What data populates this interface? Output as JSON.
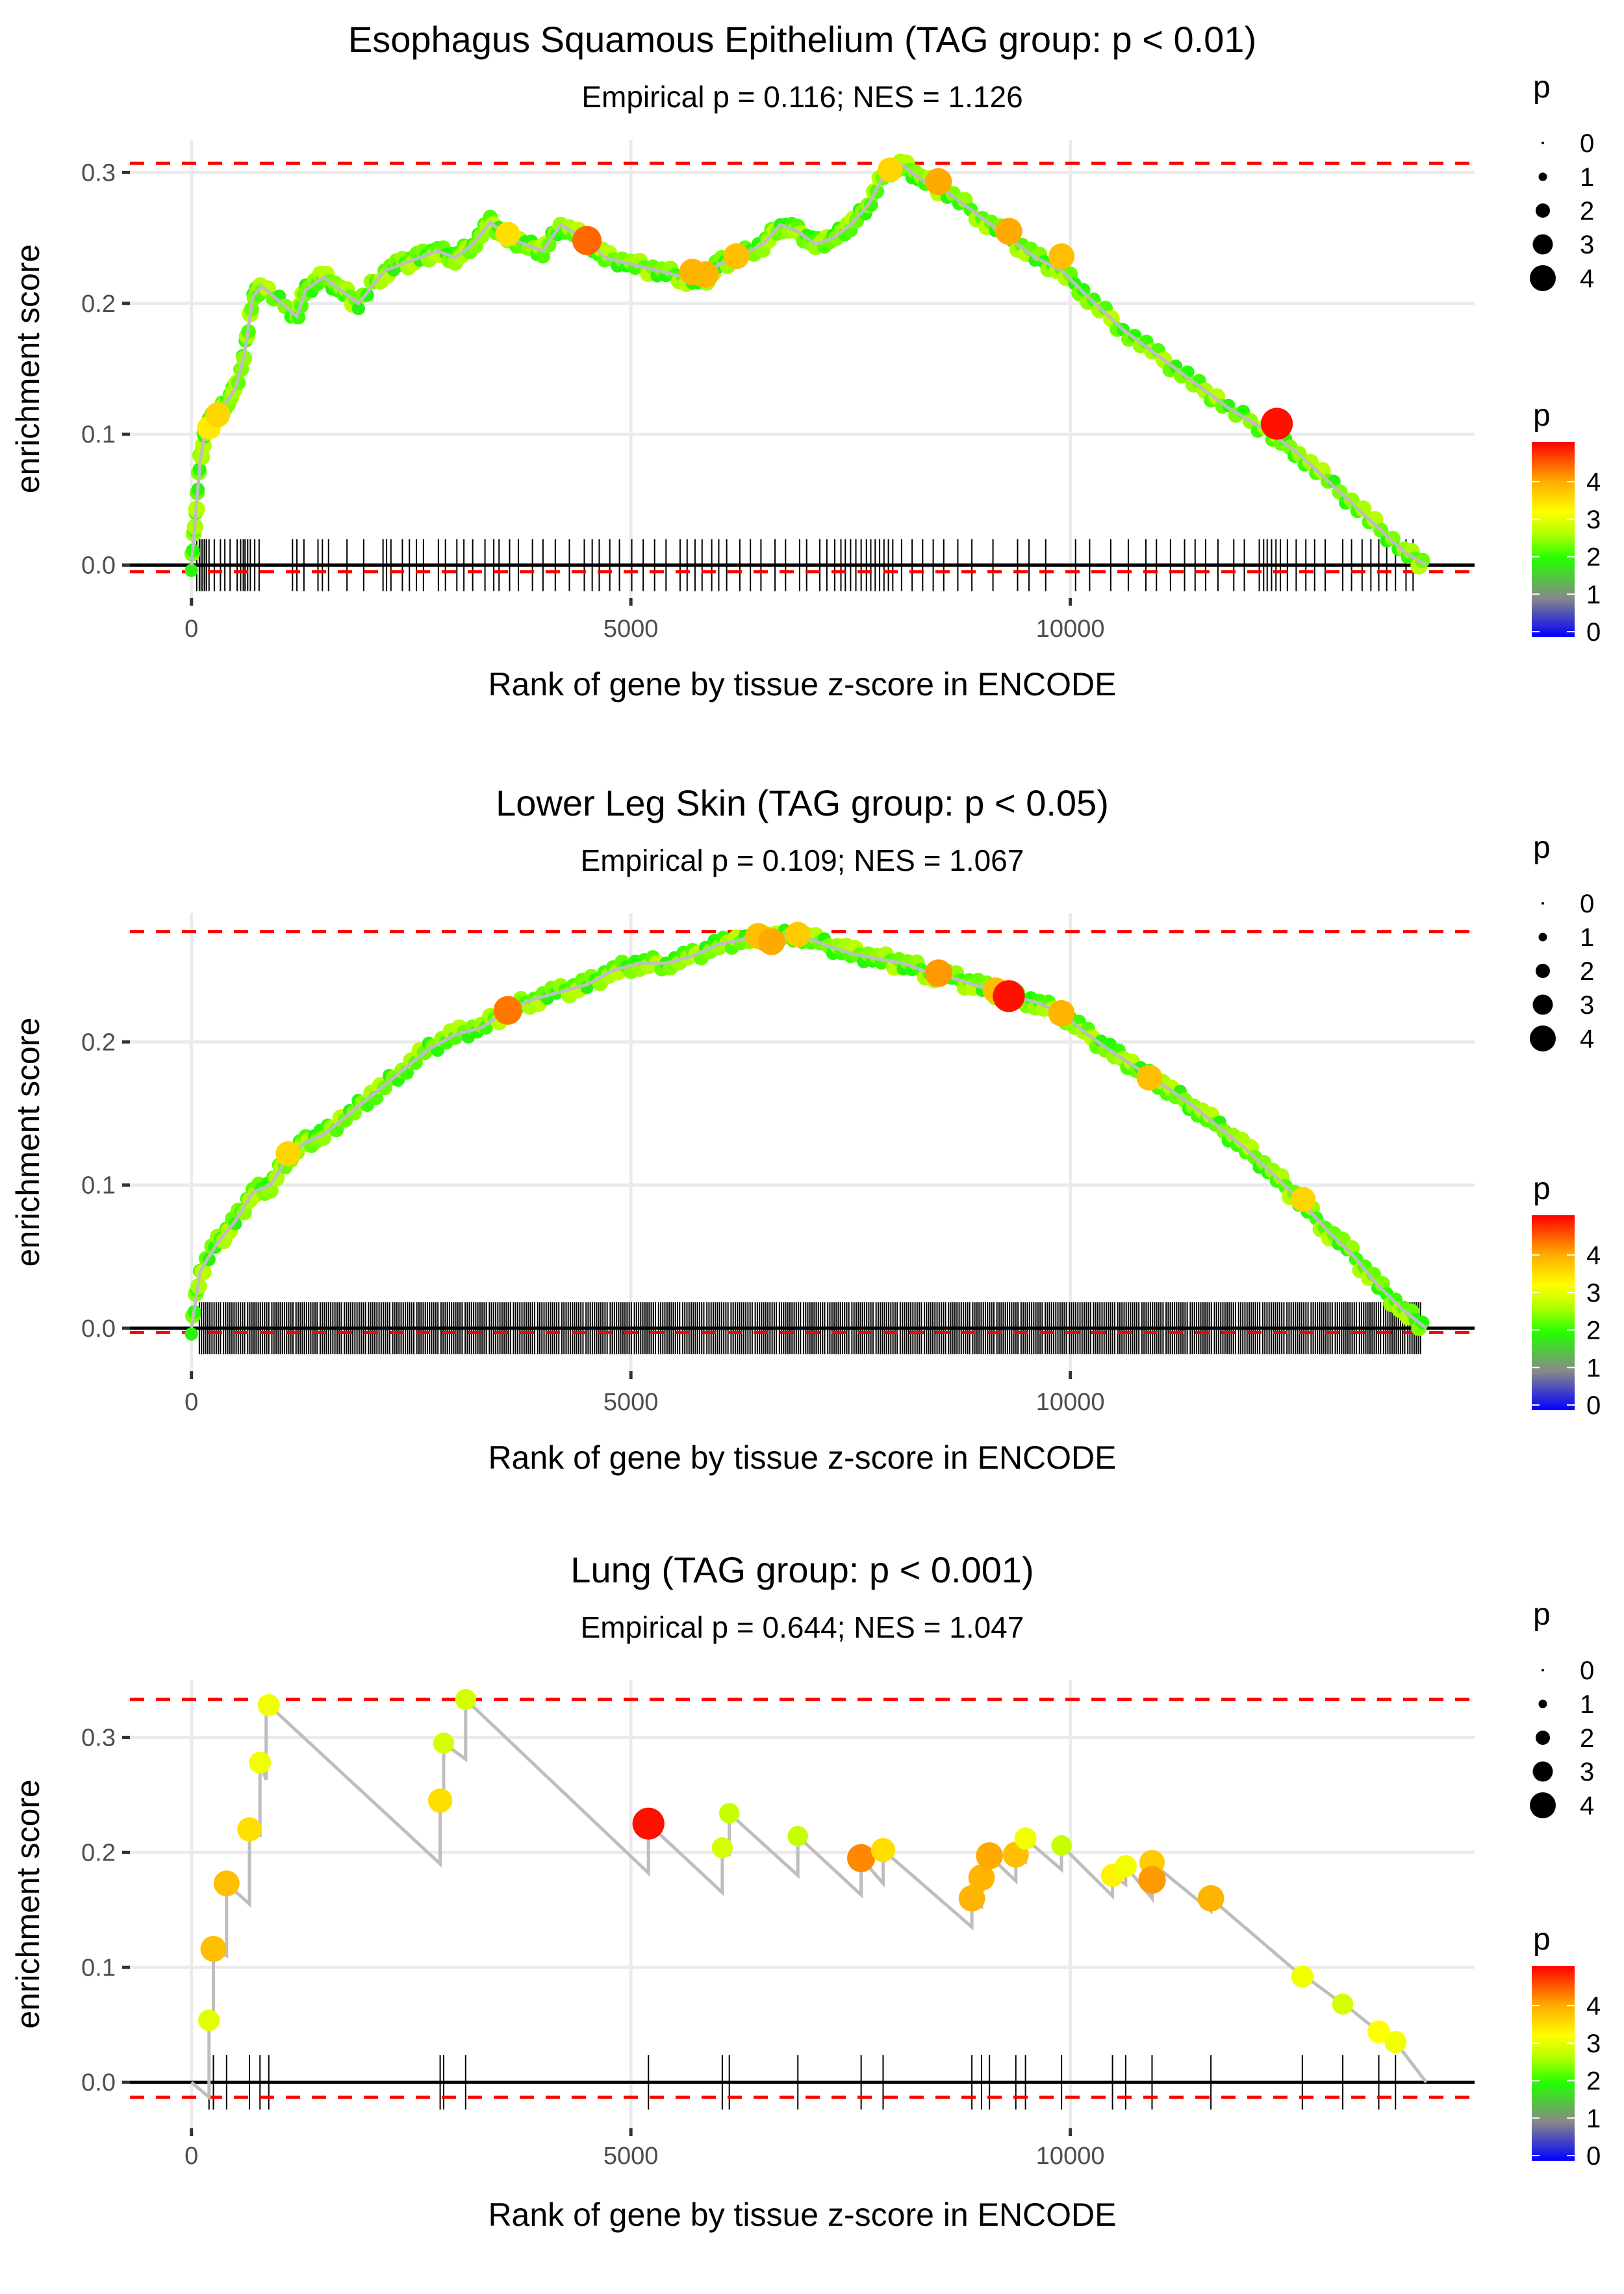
{
  "chart_data": [
    {
      "type": "scatter",
      "title": "Esophagus Squamous Epithelium (TAG group: p < 0.01)",
      "subtitle": "Empirical p = 0.116; NES = 1.126",
      "xlabel": "Rank of gene by tissue z-score in ENCODE",
      "ylabel": "enrichment score",
      "xlim": [
        -700,
        14600
      ],
      "ylim": [
        -0.025,
        0.325
      ],
      "x_ticks": [
        0,
        5000,
        10000
      ],
      "x_tick_labels": [
        "0",
        "5000",
        "10000"
      ],
      "y_ticks": [
        0.0,
        0.1,
        0.2,
        0.3
      ],
      "y_tick_labels": [
        "0.0",
        "0.1",
        "0.2",
        "0.3"
      ],
      "grid": true,
      "max_es_line": 0.307,
      "min_es_line": -0.005,
      "n_total_genes": 14050,
      "curve": {
        "x": [
          0,
          50,
          100,
          150,
          200,
          300,
          400,
          500,
          600,
          700,
          800,
          1200,
          1300,
          1500,
          1700,
          1900,
          2200,
          2400,
          2600,
          2800,
          3000,
          3200,
          3400,
          3600,
          3800,
          4000,
          4200,
          4500,
          4700,
          5000,
          5300,
          5600,
          5800,
          6000,
          6200,
          6500,
          6700,
          6900,
          7100,
          7300,
          7500,
          7700,
          7900,
          8100,
          8300,
          8600,
          9000,
          9300,
          9600,
          9900,
          10200,
          10600,
          11000,
          11400,
          11800,
          12300,
          12600,
          13000,
          13400,
          13800,
          14050
        ],
        "y": [
          0.0,
          0.04,
          0.08,
          0.1,
          0.11,
          0.115,
          0.125,
          0.135,
          0.16,
          0.205,
          0.213,
          0.19,
          0.21,
          0.22,
          0.21,
          0.2,
          0.225,
          0.23,
          0.235,
          0.24,
          0.235,
          0.245,
          0.262,
          0.25,
          0.245,
          0.24,
          0.26,
          0.248,
          0.235,
          0.23,
          0.225,
          0.22,
          0.215,
          0.23,
          0.235,
          0.245,
          0.26,
          0.255,
          0.245,
          0.25,
          0.26,
          0.275,
          0.3,
          0.305,
          0.295,
          0.285,
          0.265,
          0.25,
          0.235,
          0.225,
          0.205,
          0.18,
          0.16,
          0.14,
          0.12,
          0.1,
          0.085,
          0.06,
          0.035,
          0.01,
          0.0
        ]
      },
      "highlight_points": [
        {
          "x": 200,
          "y": 0.105,
          "p": 3.4
        },
        {
          "x": 300,
          "y": 0.115,
          "p": 3.6
        },
        {
          "x": 3600,
          "y": 0.253,
          "p": 3.5
        },
        {
          "x": 4500,
          "y": 0.248,
          "p": 4.4
        },
        {
          "x": 5700,
          "y": 0.224,
          "p": 3.9
        },
        {
          "x": 5850,
          "y": 0.222,
          "p": 3.9
        },
        {
          "x": 6200,
          "y": 0.236,
          "p": 3.8
        },
        {
          "x": 7950,
          "y": 0.302,
          "p": 3.6
        },
        {
          "x": 8500,
          "y": 0.293,
          "p": 4.0
        },
        {
          "x": 9300,
          "y": 0.255,
          "p": 4.0
        },
        {
          "x": 9900,
          "y": 0.236,
          "p": 3.8
        },
        {
          "x": 12350,
          "y": 0.108,
          "p": 4.9
        }
      ],
      "hit_ranks": [
        60,
        90,
        110,
        130,
        150,
        170,
        200,
        260,
        330,
        380,
        440,
        520,
        560,
        590,
        610,
        640,
        670,
        720,
        770,
        1150,
        1200,
        1280,
        1440,
        1490,
        1560,
        1770,
        1960,
        2180,
        2220,
        2270,
        2400,
        2480,
        2560,
        2640,
        2810,
        2890,
        3020,
        3100,
        3200,
        3340,
        3440,
        3500,
        3620,
        3720,
        3880,
        4000,
        4140,
        4300,
        4470,
        4560,
        4640,
        4760,
        4870,
        5010,
        5140,
        5270,
        5400,
        5560,
        5640,
        5730,
        5810,
        5920,
        6000,
        6090,
        6240,
        6360,
        6480,
        6640,
        6760,
        6920,
        7000,
        7150,
        7230,
        7320,
        7390,
        7440,
        7500,
        7560,
        7620,
        7680,
        7730,
        7780,
        7830,
        7880,
        7930,
        7980,
        8080,
        8200,
        8320,
        8440,
        8560,
        8720,
        8880,
        9120,
        9400,
        9530,
        9720,
        10060,
        10220,
        10460,
        10660,
        10860,
        10980,
        11140,
        11300,
        11420,
        11540,
        11680,
        11860,
        11980,
        12150,
        12200,
        12240,
        12290,
        12340,
        12390,
        12470,
        12570,
        12680,
        12780,
        12900,
        13100,
        13200,
        13320,
        13420,
        13510,
        13600,
        13700,
        13820,
        13900
      ]
    },
    {
      "type": "scatter",
      "title": "Lower Leg Skin (TAG group: p < 0.05)",
      "subtitle": "Empirical p = 0.109; NES = 1.067",
      "xlabel": "Rank of gene by tissue z-score in ENCODE",
      "ylabel": "enrichment score",
      "xlim": [
        -700,
        14600
      ],
      "ylim": [
        -0.03,
        0.29
      ],
      "x_ticks": [
        0,
        5000,
        10000
      ],
      "x_tick_labels": [
        "0",
        "5000",
        "10000"
      ],
      "y_ticks": [
        0.0,
        0.1,
        0.2
      ],
      "y_tick_labels": [
        "0.0",
        "0.1",
        "0.2"
      ],
      "grid": true,
      "max_es_line": 0.277,
      "min_es_line": -0.003,
      "n_total_genes": 14050,
      "curve": {
        "x": [
          0,
          100,
          300,
          500,
          700,
          900,
          1100,
          1300,
          1500,
          1800,
          2100,
          2400,
          2700,
          3000,
          3300,
          3600,
          3900,
          4200,
          4500,
          4800,
          5100,
          5400,
          5700,
          6000,
          6300,
          6600,
          6900,
          7200,
          7500,
          7800,
          8100,
          8400,
          8700,
          9000,
          9300,
          9600,
          9900,
          10200,
          10500,
          10800,
          11100,
          11400,
          11700,
          12000,
          12300,
          12600,
          12900,
          13200,
          13500,
          13800,
          14050
        ],
        "y": [
          0.0,
          0.04,
          0.06,
          0.075,
          0.095,
          0.1,
          0.12,
          0.13,
          0.135,
          0.15,
          0.165,
          0.18,
          0.195,
          0.205,
          0.21,
          0.222,
          0.23,
          0.235,
          0.24,
          0.25,
          0.255,
          0.255,
          0.26,
          0.268,
          0.272,
          0.273,
          0.275,
          0.268,
          0.262,
          0.258,
          0.255,
          0.248,
          0.244,
          0.238,
          0.232,
          0.228,
          0.22,
          0.205,
          0.192,
          0.18,
          0.168,
          0.155,
          0.14,
          0.125,
          0.108,
          0.09,
          0.07,
          0.052,
          0.03,
          0.012,
          0.0
        ]
      },
      "highlight_points": [
        {
          "x": 1100,
          "y": 0.122,
          "p": 3.6
        },
        {
          "x": 3600,
          "y": 0.222,
          "p": 4.3
        },
        {
          "x": 6450,
          "y": 0.274,
          "p": 3.8
        },
        {
          "x": 6600,
          "y": 0.27,
          "p": 4.0
        },
        {
          "x": 6900,
          "y": 0.275,
          "p": 3.7
        },
        {
          "x": 8500,
          "y": 0.248,
          "p": 4.1
        },
        {
          "x": 9150,
          "y": 0.236,
          "p": 3.8
        },
        {
          "x": 9300,
          "y": 0.232,
          "p": 4.9
        },
        {
          "x": 9900,
          "y": 0.22,
          "p": 3.9
        },
        {
          "x": 10900,
          "y": 0.175,
          "p": 3.8
        },
        {
          "x": 12650,
          "y": 0.09,
          "p": 3.6
        }
      ],
      "hit_ranks_note": "dense: approximately every 25 ranks from 80 to 14000"
    },
    {
      "type": "scatter",
      "title": "Lung (TAG group: p < 0.001)",
      "subtitle": "Empirical p = 0.644; NES = 1.047",
      "xlabel": "Rank of gene by tissue z-score in ENCODE",
      "ylabel": "enrichment score",
      "xlim": [
        -700,
        14600
      ],
      "ylim": [
        -0.04,
        0.35
      ],
      "x_ticks": [
        0,
        5000,
        10000
      ],
      "x_tick_labels": [
        "0",
        "5000",
        "10000"
      ],
      "y_ticks": [
        0.0,
        0.1,
        0.2,
        0.3
      ],
      "y_tick_labels": [
        "0.0",
        "0.1",
        "0.2",
        "0.3"
      ],
      "grid": true,
      "max_es_line": 0.333,
      "min_es_line": -0.013,
      "n_total_genes": 14050,
      "curve": {
        "x": [
          0,
          200,
          200,
          250,
          250,
          400,
          400,
          660,
          660,
          780,
          780,
          850,
          850,
          880,
          880,
          2830,
          2830,
          2870,
          2870,
          3120,
          3120,
          5200,
          5200,
          6040,
          6040,
          6120,
          6120,
          6900,
          6900,
          7620,
          7620,
          7870,
          7870,
          8880,
          8880,
          8990,
          8990,
          9080,
          9080,
          9380,
          9380,
          9490,
          9490,
          9900,
          9900,
          10480,
          10480,
          10630,
          10630,
          10930,
          10930,
          11600,
          11600,
          12640,
          12640,
          13100,
          13100,
          13510,
          13510,
          13700,
          13700,
          14050
        ],
        "y": [
          0.0,
          -0.013,
          0.054,
          0.05,
          0.116,
          0.11,
          0.173,
          0.155,
          0.22,
          0.215,
          0.278,
          0.263,
          0.328,
          0.324,
          0.328,
          0.19,
          0.245,
          0.242,
          0.295,
          0.281,
          0.333,
          0.182,
          0.225,
          0.165,
          0.204,
          0.199,
          0.234,
          0.18,
          0.214,
          0.163,
          0.195,
          0.173,
          0.202,
          0.135,
          0.16,
          0.153,
          0.178,
          0.172,
          0.197,
          0.175,
          0.198,
          0.192,
          0.212,
          0.185,
          0.206,
          0.162,
          0.18,
          0.172,
          0.188,
          0.16,
          0.191,
          0.149,
          0.16,
          0.092,
          0.094,
          0.068,
          0.069,
          0.044,
          0.045,
          0.035,
          0.035,
          0.0
        ]
      },
      "points": [
        {
          "x": 200,
          "y": 0.054,
          "p": 3.0
        },
        {
          "x": 250,
          "y": 0.116,
          "p": 3.8
        },
        {
          "x": 400,
          "y": 0.173,
          "p": 3.8
        },
        {
          "x": 660,
          "y": 0.22,
          "p": 3.5
        },
        {
          "x": 780,
          "y": 0.278,
          "p": 3.1
        },
        {
          "x": 880,
          "y": 0.328,
          "p": 3.1
        },
        {
          "x": 2830,
          "y": 0.245,
          "p": 3.5
        },
        {
          "x": 2870,
          "y": 0.295,
          "p": 2.9
        },
        {
          "x": 3120,
          "y": 0.333,
          "p": 2.9
        },
        {
          "x": 5200,
          "y": 0.225,
          "p": 4.9
        },
        {
          "x": 6040,
          "y": 0.204,
          "p": 2.9
        },
        {
          "x": 6120,
          "y": 0.234,
          "p": 2.8
        },
        {
          "x": 6900,
          "y": 0.214,
          "p": 2.8
        },
        {
          "x": 7620,
          "y": 0.195,
          "p": 4.2
        },
        {
          "x": 7870,
          "y": 0.202,
          "p": 3.5
        },
        {
          "x": 8880,
          "y": 0.16,
          "p": 3.9
        },
        {
          "x": 8990,
          "y": 0.178,
          "p": 3.9
        },
        {
          "x": 9080,
          "y": 0.197,
          "p": 4.0
        },
        {
          "x": 9380,
          "y": 0.198,
          "p": 3.8
        },
        {
          "x": 9490,
          "y": 0.212,
          "p": 3.1
        },
        {
          "x": 9900,
          "y": 0.206,
          "p": 2.8
        },
        {
          "x": 10480,
          "y": 0.18,
          "p": 3.3
        },
        {
          "x": 10630,
          "y": 0.188,
          "p": 3.1
        },
        {
          "x": 10930,
          "y": 0.191,
          "p": 3.7
        },
        {
          "x": 10930,
          "y": 0.176,
          "p": 4.1
        },
        {
          "x": 11600,
          "y": 0.16,
          "p": 3.9
        },
        {
          "x": 12640,
          "y": 0.092,
          "p": 3.1
        },
        {
          "x": 13100,
          "y": 0.068,
          "p": 2.9
        },
        {
          "x": 13510,
          "y": 0.044,
          "p": 3.2
        },
        {
          "x": 13700,
          "y": 0.035,
          "p": 3.1
        }
      ],
      "hit_ranks": [
        200,
        250,
        400,
        660,
        780,
        880,
        2830,
        2870,
        3120,
        5200,
        6040,
        6120,
        6900,
        7620,
        7870,
        8880,
        8990,
        9080,
        9380,
        9490,
        9900,
        10480,
        10630,
        10930,
        11600,
        12640,
        13100,
        13510,
        13700
      ]
    }
  ],
  "legends": {
    "size_title": "p",
    "size_labels": [
      "0",
      "1",
      "2",
      "3",
      "4"
    ],
    "color_title": "p",
    "color_labels": [
      "4",
      "3",
      "2",
      "1",
      "0"
    ],
    "color_scale": [
      "#0000ff",
      "#888888",
      "#22ff00",
      "#aaff00",
      "#ffff00",
      "#ffaa00",
      "#ff0000"
    ],
    "colors": {
      "curve": "#bebebe",
      "es_line": "#ff0000",
      "zero_line": "#000000",
      "grid": "#ebebeb",
      "hit": "#000000"
    }
  }
}
